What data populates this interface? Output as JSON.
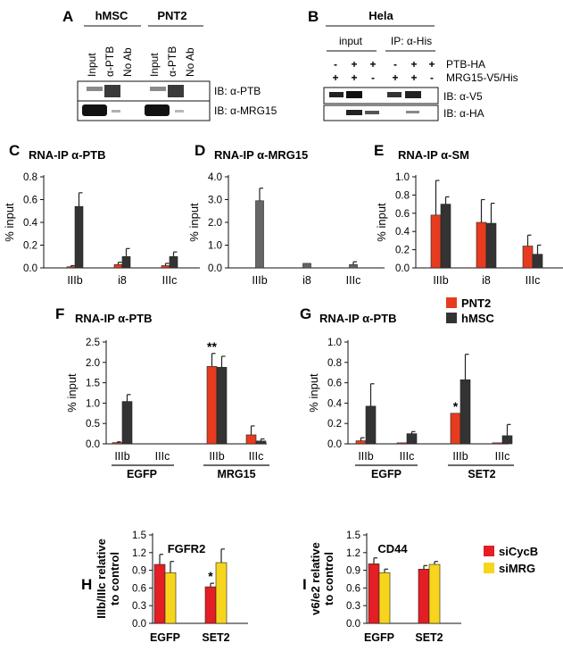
{
  "blots": {
    "A": {
      "label": "A",
      "groups": [
        "hMSC",
        "PNT2"
      ],
      "lanes": [
        "Input",
        "α-PTB",
        "No Ab",
        "Input",
        "α-PTB",
        "No Ab"
      ],
      "ib": [
        "IB: α-PTB",
        "IB: α-MRG15"
      ]
    },
    "B": {
      "label": "B",
      "cell_line": "Hela",
      "groups": [
        "input",
        "IP: α-His"
      ],
      "rows": [
        {
          "name": "PTB-HA",
          "signs": [
            "-",
            "+",
            "+",
            "-",
            "+",
            "+"
          ]
        },
        {
          "name": "MRG15-V5/His",
          "signs": [
            "+",
            "+",
            "-",
            "+",
            "+",
            "-"
          ]
        }
      ],
      "ib": [
        "IB: α-V5",
        "IB: α-HA"
      ]
    }
  },
  "legend_fg": [
    {
      "name": "PNT2",
      "color": "#e63b1f"
    },
    {
      "name": "hMSC",
      "color": "#333333"
    }
  ],
  "legend_hi": [
    {
      "name": "siCycB",
      "color": "#e31e24"
    },
    {
      "name": "siMRG",
      "color": "#f7d51c"
    }
  ],
  "chart_data": [
    {
      "id": "C",
      "label": "C",
      "type": "bar",
      "title": "RNA-IP α-PTB",
      "ylabel": "% input",
      "ylim": [
        0,
        0.8
      ],
      "yticks": [
        "0.0",
        "0.2",
        "0.4",
        "0.6",
        "0.8"
      ],
      "categories": [
        "IIIb",
        "i8",
        "IIIc"
      ],
      "group_labels": [],
      "series": [
        {
          "color": "#e63b1f",
          "values": [
            0.01,
            0.03,
            0.02
          ],
          "err": [
            0.01,
            0.02,
            0.02
          ]
        },
        {
          "color": "#333333",
          "values": [
            0.54,
            0.1,
            0.1
          ],
          "err": [
            0.12,
            0.07,
            0.04
          ]
        }
      ],
      "annotations": []
    },
    {
      "id": "D",
      "label": "D",
      "type": "bar",
      "title": "RNA-IP α-MRG15",
      "ylabel": "% input",
      "ylim": [
        0,
        4.0
      ],
      "yticks": [
        "0.0",
        "1.0",
        "2.0",
        "3.0",
        "4.0"
      ],
      "categories": [
        "IIIb",
        "i8",
        "IIIc"
      ],
      "group_labels": [],
      "series": [
        {
          "color": "#666666",
          "values": [
            2.95,
            0.2,
            0.15
          ],
          "err": [
            0.55,
            0.0,
            0.12
          ]
        }
      ],
      "annotations": []
    },
    {
      "id": "E",
      "label": "E",
      "type": "bar",
      "title": "RNA-IP α-SM",
      "ylabel": "% input",
      "ylim": [
        0,
        1.0
      ],
      "yticks": [
        "0.0",
        "0.2",
        "0.4",
        "0.6",
        "0.8",
        "1.0"
      ],
      "categories": [
        "IIIb",
        "i8",
        "IIIc"
      ],
      "group_labels": [],
      "series": [
        {
          "color": "#e63b1f",
          "values": [
            0.58,
            0.5,
            0.24
          ],
          "err": [
            0.38,
            0.25,
            0.12
          ]
        },
        {
          "color": "#333333",
          "values": [
            0.7,
            0.49,
            0.15
          ],
          "err": [
            0.08,
            0.22,
            0.1
          ]
        }
      ],
      "annotations": []
    },
    {
      "id": "F",
      "label": "F",
      "type": "bar",
      "title": "RNA-IP α-PTB",
      "ylabel": "% input",
      "ylim": [
        0,
        2.5
      ],
      "yticks": [
        "0.0",
        "0.5",
        "1.0",
        "1.5",
        "2.0",
        "2.5"
      ],
      "categories": [
        "IIIb",
        "IIIc",
        "IIIb",
        "IIIc"
      ],
      "group_labels": [
        "EGFP",
        "MRG15"
      ],
      "series": [
        {
          "color": "#e63b1f",
          "values": [
            0.03,
            0,
            1.9,
            0.22
          ],
          "err": [
            0.02,
            0,
            0.32,
            0.22
          ]
        },
        {
          "color": "#333333",
          "values": [
            1.04,
            0,
            1.88,
            0.07
          ],
          "err": [
            0.17,
            0,
            0.27,
            0.05
          ]
        }
      ],
      "annotations": [
        {
          "text": "**",
          "category": 2
        }
      ]
    },
    {
      "id": "G",
      "label": "G",
      "type": "bar",
      "title": "RNA-IP α-PTB",
      "ylabel": "% input",
      "ylim": [
        0,
        1.0
      ],
      "yticks": [
        "0.0",
        "0.2",
        "0.4",
        "0.6",
        "0.8",
        "1.0"
      ],
      "categories": [
        "IIIb",
        "IIIc",
        "IIIb",
        "IIIc"
      ],
      "group_labels": [
        "EGFP",
        "SET2"
      ],
      "series": [
        {
          "color": "#e63b1f",
          "values": [
            0.03,
            0.01,
            0.3,
            0.01
          ],
          "err": [
            0.03,
            0.0,
            0.0,
            0.0
          ]
        },
        {
          "color": "#333333",
          "values": [
            0.37,
            0.1,
            0.63,
            0.08
          ],
          "err": [
            0.22,
            0.02,
            0.25,
            0.11
          ]
        }
      ],
      "annotations": [
        {
          "text": "*",
          "category": 2
        }
      ]
    },
    {
      "id": "H",
      "label": "H",
      "type": "bar",
      "title": "FGFR2",
      "ylabel": "IIIb/IIIc relative to control",
      "ylim": [
        0,
        1.5
      ],
      "yticks": [
        "0.0",
        "0.3",
        "0.6",
        "0.9",
        "1.2",
        "1.5"
      ],
      "categories": [
        "EGFP",
        "SET2"
      ],
      "group_labels": [],
      "series": [
        {
          "color": "#e31e24",
          "values": [
            1.0,
            0.62
          ],
          "err": [
            0.17,
            0.06
          ]
        },
        {
          "color": "#f7d51c",
          "values": [
            0.86,
            1.03
          ],
          "err": [
            0.19,
            0.23
          ]
        }
      ],
      "annotations": [
        {
          "text": "*",
          "category": 1
        }
      ]
    },
    {
      "id": "I",
      "label": "I",
      "type": "bar",
      "title": "CD44",
      "ylabel": "v6/e2 relative to control",
      "ylim": [
        0,
        1.5
      ],
      "yticks": [
        "0.0",
        "0.3",
        "0.6",
        "0.9",
        "1.2",
        "1.5"
      ],
      "categories": [
        "EGFP",
        "SET2"
      ],
      "group_labels": [],
      "series": [
        {
          "color": "#e31e24",
          "values": [
            1.01,
            0.92
          ],
          "err": [
            0.1,
            0.06
          ]
        },
        {
          "color": "#f7d51c",
          "values": [
            0.86,
            1.0
          ],
          "err": [
            0.06,
            0.05
          ]
        }
      ],
      "annotations": []
    }
  ]
}
